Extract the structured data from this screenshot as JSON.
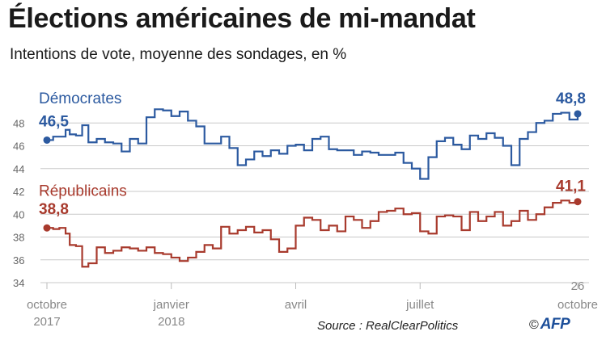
{
  "title": "Élections américaines de mi-mandat",
  "subtitle": "Intentions de vote, moyenne des sondages, en %",
  "source": "Source : RealClearPolitics",
  "credit": {
    "copyright": "©",
    "logo": "AFP"
  },
  "chart_data": {
    "type": "line",
    "ylim": [
      34,
      50
    ],
    "y_ticks": [
      "34",
      "36",
      "38",
      "40",
      "42",
      "44",
      "46",
      "48"
    ],
    "grid": true,
    "x_ticks": [
      {
        "month_index": 0,
        "line1": "octobre",
        "line2": "2017"
      },
      {
        "month_index": 3,
        "line1": "janvier",
        "line2": "2018"
      },
      {
        "month_index": 6,
        "line1": "avril",
        "line2": ""
      },
      {
        "month_index": 9,
        "line1": "juillet",
        "line2": ""
      },
      {
        "month_index": 12.8,
        "line1": "26",
        "line2": "octobre"
      }
    ],
    "colors": {
      "democrats": "#2c5aa0",
      "republicans": "#a83a2d"
    },
    "series": [
      {
        "name": "Démocrates",
        "start_label": "46,5",
        "end_label": "48,8",
        "x": [
          0,
          0.15,
          0.3,
          0.45,
          0.55,
          0.7,
          0.85,
          1.0,
          1.2,
          1.4,
          1.6,
          1.8,
          2.0,
          2.2,
          2.4,
          2.6,
          2.8,
          3.0,
          3.2,
          3.4,
          3.6,
          3.8,
          4.0,
          4.2,
          4.4,
          4.6,
          4.8,
          5.0,
          5.2,
          5.4,
          5.6,
          5.8,
          6.0,
          6.2,
          6.4,
          6.6,
          6.8,
          7.0,
          7.2,
          7.4,
          7.6,
          7.8,
          8.0,
          8.2,
          8.4,
          8.6,
          8.8,
          9.0,
          9.2,
          9.4,
          9.6,
          9.8,
          10.0,
          10.2,
          10.4,
          10.6,
          10.8,
          11.0,
          11.2,
          11.4,
          11.6,
          11.8,
          12.0,
          12.2,
          12.4,
          12.6,
          12.8
        ],
        "values": [
          46.5,
          46.8,
          46.8,
          47.4,
          47.0,
          46.9,
          47.8,
          46.3,
          46.6,
          46.3,
          46.2,
          45.5,
          46.6,
          46.2,
          48.5,
          49.2,
          49.1,
          48.6,
          49.0,
          48.2,
          47.7,
          46.2,
          46.2,
          46.8,
          45.8,
          44.3,
          44.8,
          45.5,
          45.1,
          45.6,
          45.3,
          46.0,
          46.1,
          45.6,
          46.6,
          46.8,
          45.7,
          45.6,
          45.6,
          45.2,
          45.5,
          45.4,
          45.2,
          45.2,
          45.4,
          44.5,
          44.0,
          43.1,
          45.0,
          46.4,
          46.7,
          46.1,
          45.7,
          46.9,
          46.6,
          47.1,
          46.7,
          46.0,
          44.3,
          46.6,
          47.2,
          48.0,
          48.2,
          48.8,
          48.9,
          48.3,
          48.8
        ]
      },
      {
        "name": "Républicains",
        "start_label": "38,8",
        "end_label": "41,1",
        "x": [
          0,
          0.15,
          0.3,
          0.45,
          0.55,
          0.7,
          0.85,
          1.0,
          1.2,
          1.4,
          1.6,
          1.8,
          2.0,
          2.2,
          2.4,
          2.6,
          2.8,
          3.0,
          3.2,
          3.4,
          3.6,
          3.8,
          4.0,
          4.2,
          4.4,
          4.6,
          4.8,
          5.0,
          5.2,
          5.4,
          5.6,
          5.8,
          6.0,
          6.2,
          6.4,
          6.6,
          6.8,
          7.0,
          7.2,
          7.4,
          7.6,
          7.8,
          8.0,
          8.2,
          8.4,
          8.6,
          8.8,
          9.0,
          9.2,
          9.4,
          9.6,
          9.8,
          10.0,
          10.2,
          10.4,
          10.6,
          10.8,
          11.0,
          11.2,
          11.4,
          11.6,
          11.8,
          12.0,
          12.2,
          12.4,
          12.6,
          12.8
        ],
        "values": [
          38.8,
          38.7,
          38.8,
          38.3,
          37.3,
          37.2,
          35.4,
          35.7,
          37.1,
          36.6,
          36.8,
          37.1,
          37.0,
          36.8,
          37.1,
          36.6,
          36.5,
          36.2,
          35.9,
          36.2,
          36.7,
          37.3,
          37.0,
          38.9,
          38.3,
          38.6,
          38.9,
          38.4,
          38.6,
          37.8,
          36.7,
          37.0,
          39.0,
          39.7,
          39.5,
          38.6,
          39.0,
          38.5,
          39.8,
          39.5,
          38.8,
          39.4,
          40.2,
          40.3,
          40.5,
          40.0,
          40.1,
          38.5,
          38.3,
          39.8,
          39.9,
          39.8,
          38.6,
          40.2,
          39.4,
          39.8,
          40.2,
          39.0,
          39.4,
          40.3,
          39.5,
          40.0,
          40.6,
          41.0,
          41.2,
          41.0,
          41.1
        ]
      }
    ]
  }
}
